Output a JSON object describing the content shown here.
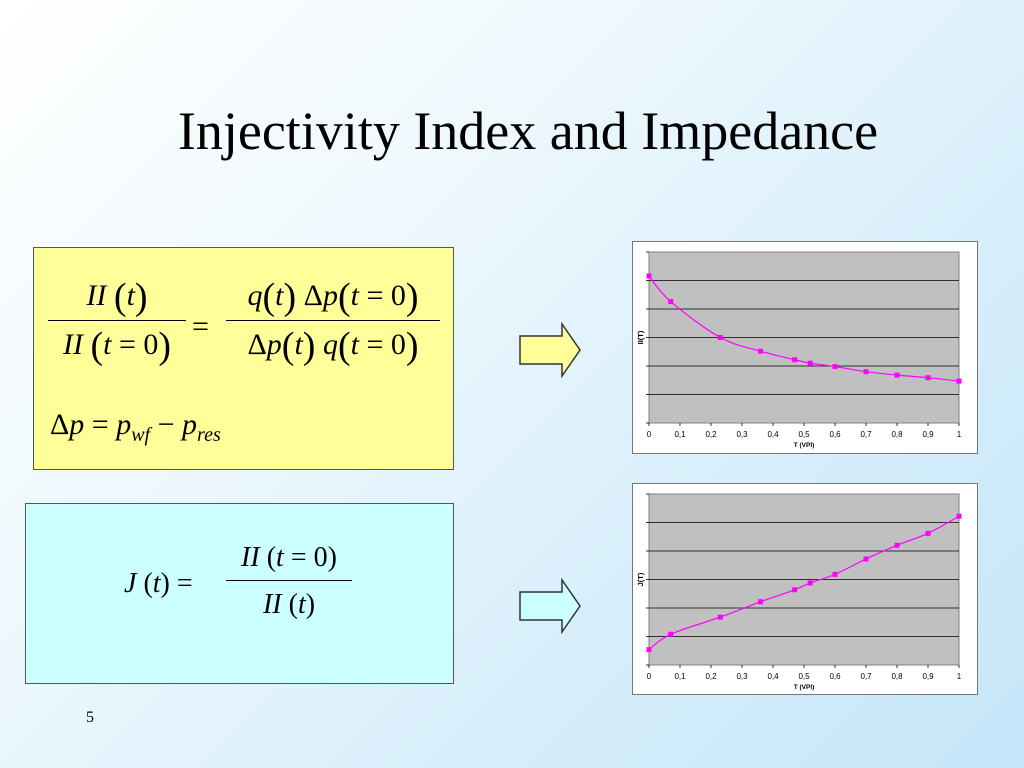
{
  "slide": {
    "title": "Injectivity Index and Impedance",
    "page_number": "5"
  },
  "formula_ii": {
    "lhs_num": "II (t)",
    "lhs_den": "II (t = 0)",
    "eq": "=",
    "rhs_num": "q(t) Δp(t = 0)",
    "rhs_den": "Δp(t) q(t = 0)",
    "dp_def": "Δp = p_wf − p_res"
  },
  "formula_j": {
    "lhs": "J (t) =",
    "num": "II (t = 0)",
    "den": "II (t)"
  },
  "colors": {
    "yellow_box": "#ffff99",
    "cyan_box": "#ccffff",
    "series": "#ff00ff",
    "plot_bg": "#c0c0c0"
  },
  "chart_data": [
    {
      "type": "line",
      "ylabel": "II(T)",
      "xlabel": "T (VPI)",
      "xticks": [
        "0",
        "0,1",
        "0,2",
        "0,3",
        "0,4",
        "0,5",
        "0,6",
        "0,7",
        "0,8",
        "0,9",
        "1"
      ],
      "xlim": [
        0,
        1
      ],
      "ylim": [
        0,
        1
      ],
      "grid": true,
      "series": [
        {
          "x": [
            0,
            0.07,
            0.23,
            0.36,
            0.47,
            0.52,
            0.6,
            0.7,
            0.8,
            0.9,
            1.0
          ],
          "y": [
            0.86,
            0.71,
            0.5,
            0.42,
            0.37,
            0.35,
            0.33,
            0.3,
            0.28,
            0.265,
            0.245
          ]
        }
      ]
    },
    {
      "type": "line",
      "ylabel": "J(T)",
      "xlabel": "T (VPI)",
      "xticks": [
        "0",
        "0,1",
        "0,2",
        "0,3",
        "0,4",
        "0,5",
        "0,6",
        "0,7",
        "0,8",
        "0,9",
        "1"
      ],
      "xlim": [
        0,
        1
      ],
      "ylim": [
        0,
        1
      ],
      "grid": true,
      "series": [
        {
          "x": [
            0,
            0.07,
            0.23,
            0.36,
            0.47,
            0.52,
            0.6,
            0.7,
            0.8,
            0.9,
            1.0
          ],
          "y": [
            0.09,
            0.18,
            0.28,
            0.37,
            0.44,
            0.48,
            0.53,
            0.62,
            0.7,
            0.77,
            0.87
          ]
        }
      ]
    }
  ]
}
